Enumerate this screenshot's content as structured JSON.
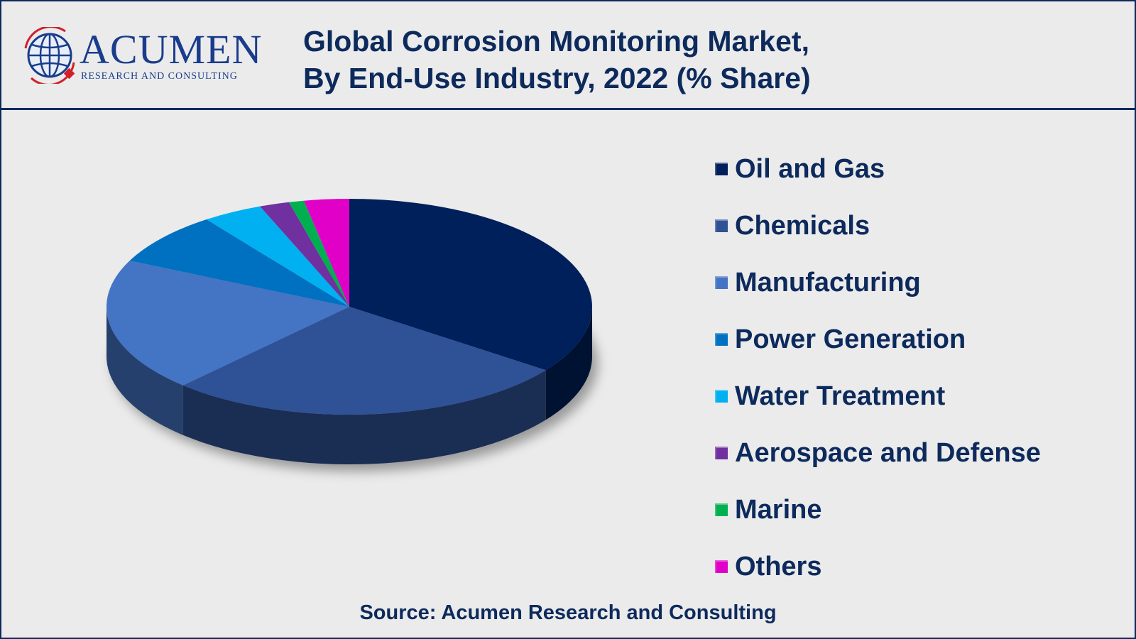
{
  "brand": {
    "name": "ACUMEN",
    "tagline": "RESEARCH AND CONSULTING"
  },
  "header": {
    "title_line1": "Global Corrosion Monitoring Market,",
    "title_line2": "By End-Use Industry, 2022 (% Share)"
  },
  "chart_data": {
    "type": "pie",
    "title": "Global Corrosion Monitoring Market, By End-Use Industry, 2022 (% Share)",
    "style": "3d",
    "legend_position": "right",
    "categories": [
      "Oil and Gas",
      "Chemicals",
      "Manufacturing",
      "Power Generation",
      "Water Treatment",
      "Aerospace and Defense",
      "Marine",
      "Others"
    ],
    "values": [
      35,
      27,
      20,
      8,
      4,
      2,
      1,
      3
    ],
    "colors": [
      "#00205b",
      "#2f5196",
      "#4474c4",
      "#0070c0",
      "#00b0f0",
      "#7030a0",
      "#00b050",
      "#e000c8"
    ]
  },
  "footer": {
    "source": "Source: Acumen Research and Consulting"
  }
}
